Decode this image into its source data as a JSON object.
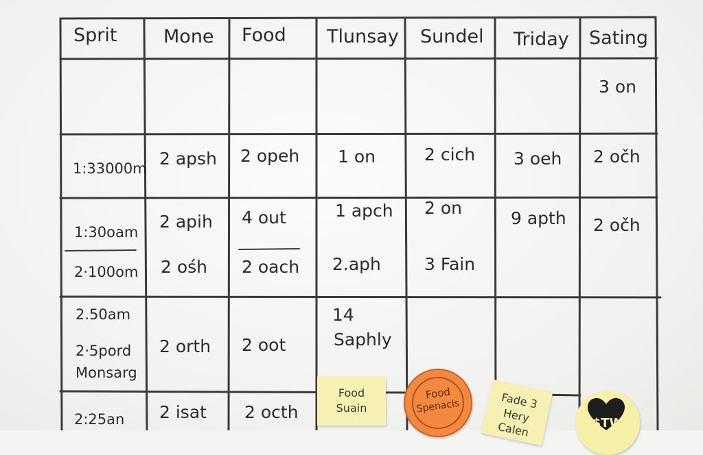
{
  "headers": [
    "Sprit",
    "Mone",
    "Food",
    "Tlunsay",
    "Sundel",
    "Triday",
    "Sating"
  ],
  "rows": [
    {
      "time": "",
      "cells": [
        "",
        "",
        "",
        "",
        "",
        "3 on"
      ]
    },
    {
      "time": "1:33000m",
      "cells": [
        "2 apsh",
        "2 opeh",
        "1 on",
        "2 cich",
        "3 oeh",
        "2 očh"
      ]
    },
    {
      "time": "1:30oam",
      "cells": [
        "2 apih",
        "4 out",
        "1 apch",
        "2 on",
        "9 apth",
        "2 očh"
      ]
    },
    {
      "time": "2·100om",
      "cells": [
        "2 ośh",
        "2 oach",
        "2.aph",
        "3 Fain",
        "",
        ""
      ]
    },
    {
      "time": "2.50am",
      "time2": "2·5pord",
      "time3": "Monsarg",
      "cells": [
        "2 orth",
        "2 oot",
        "14",
        "",
        "",
        ""
      ],
      "extra": "Saphly"
    },
    {
      "time": "2:25an",
      "cells": [
        "2 isat",
        "2 octh",
        "",
        "",
        "",
        ""
      ]
    }
  ],
  "notes": {
    "food_note": [
      "Food",
      "Suain"
    ],
    "orange_sticker": [
      "Food",
      "Spenacls"
    ],
    "fade_note": [
      "Fade 3",
      "Hery",
      "Calen"
    ],
    "heart_sticker": "$TW"
  },
  "colors": {
    "ink": "#2b2b2b",
    "sticky": "#f7f0b4",
    "orange": "#f2893f",
    "heart": "#1e1e1e"
  }
}
